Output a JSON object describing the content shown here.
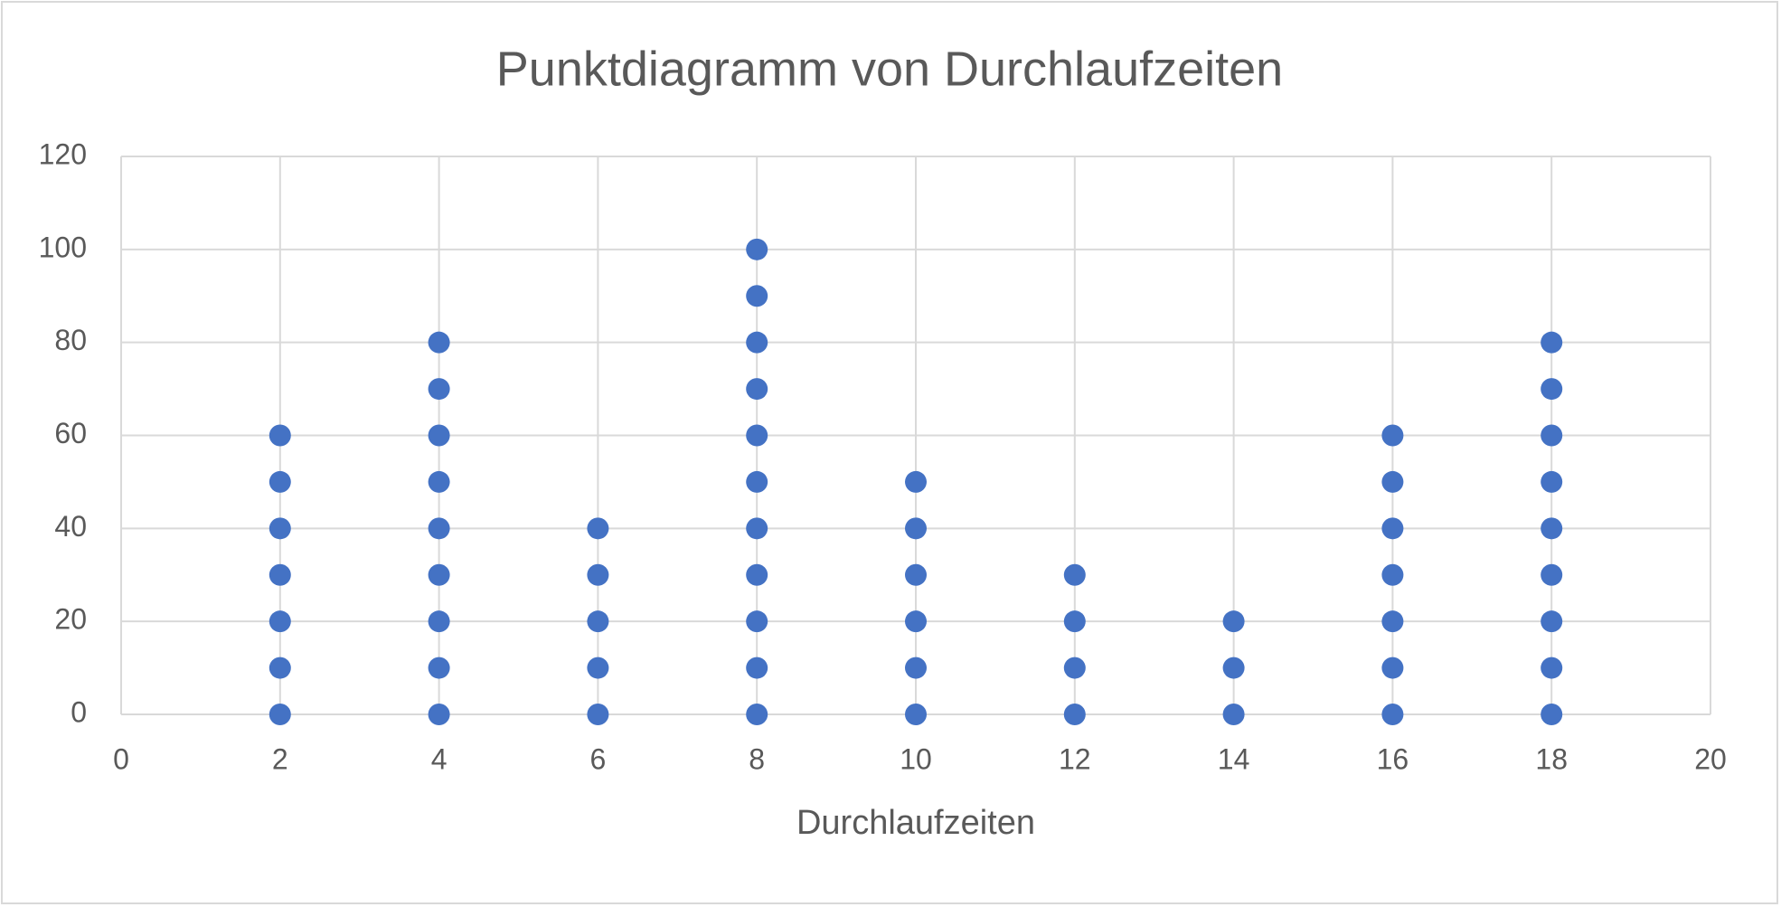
{
  "chart_data": {
    "type": "scatter",
    "title": "Punktdiagramm von Durchlaufzeiten",
    "x_label": "Durchlaufzeiten",
    "series": [
      {
        "color": "#4472c4",
        "x": [
          2,
          2,
          2,
          2,
          2,
          2,
          2,
          4,
          4,
          4,
          4,
          4,
          4,
          4,
          4,
          4,
          6,
          6,
          6,
          6,
          6,
          8,
          8,
          8,
          8,
          8,
          8,
          8,
          8,
          8,
          8,
          8,
          10,
          10,
          10,
          10,
          10,
          10,
          12,
          12,
          12,
          12,
          14,
          14,
          14,
          16,
          16,
          16,
          16,
          16,
          16,
          16,
          18,
          18,
          18,
          18,
          18,
          18,
          18,
          18,
          18
        ],
        "values": [
          0,
          10,
          20,
          30,
          40,
          50,
          60,
          0,
          10,
          20,
          30,
          40,
          50,
          60,
          70,
          80,
          0,
          10,
          20,
          30,
          40,
          0,
          10,
          20,
          30,
          40,
          50,
          60,
          70,
          80,
          90,
          100,
          0,
          10,
          20,
          30,
          40,
          50,
          0,
          10,
          20,
          30,
          0,
          10,
          20,
          0,
          10,
          20,
          30,
          40,
          50,
          60,
          0,
          10,
          20,
          30,
          40,
          50,
          60,
          70,
          80
        ]
      }
    ],
    "xlim": [
      0,
      20
    ],
    "xticks": [
      0,
      2,
      4,
      6,
      8,
      10,
      12,
      14,
      16,
      18,
      20
    ],
    "ylim": [
      0,
      120
    ],
    "yticks": [
      0,
      20,
      40,
      60,
      80,
      100,
      120
    ],
    "grid": true
  }
}
